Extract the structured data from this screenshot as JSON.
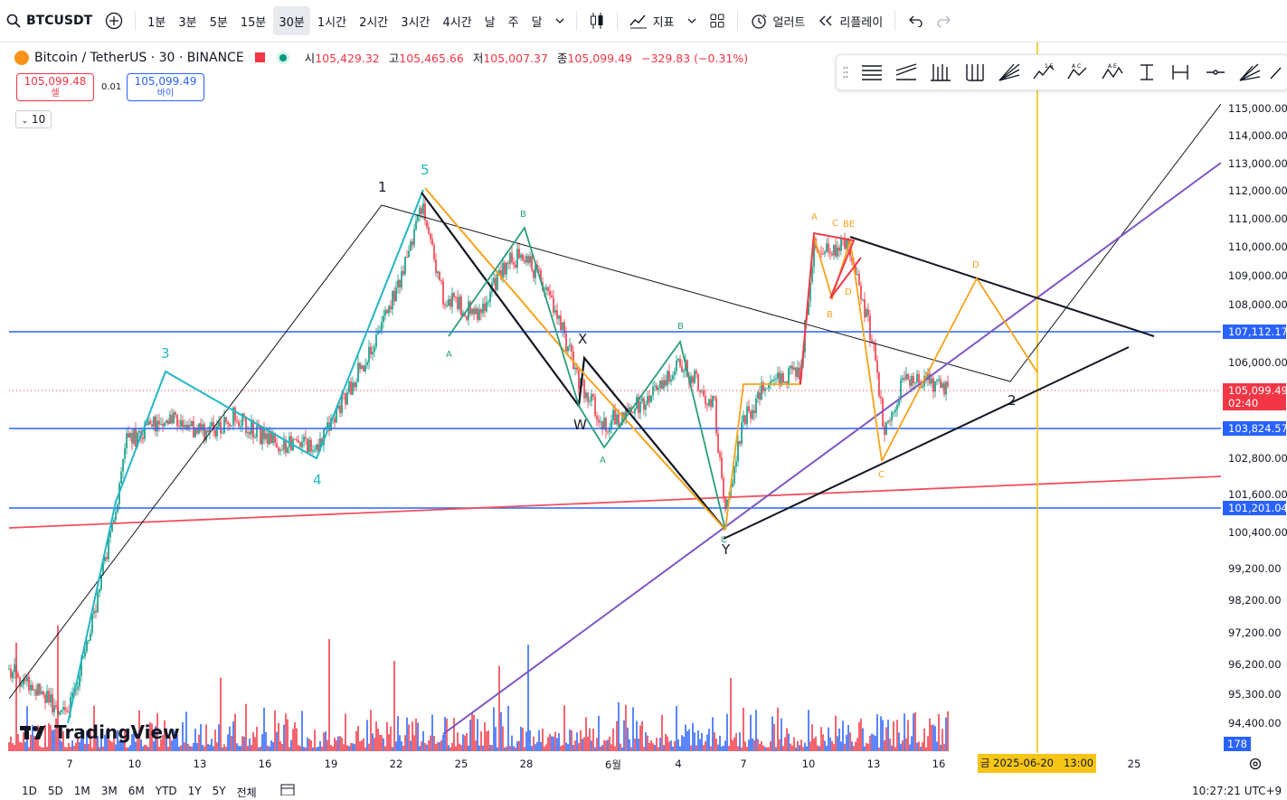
{
  "toolbar": {
    "symbol": "BTCUSDT",
    "intervals": [
      "1분",
      "3분",
      "5분",
      "15분",
      "30분",
      "1시간",
      "2시간",
      "3시간",
      "4시간",
      "날",
      "주",
      "달"
    ],
    "active_interval": "30분",
    "indicators": "지표",
    "alert": "얼러트",
    "replay": "리플레이"
  },
  "legend": {
    "title": "Bitcoin / TetherUS · 30 · BINANCE",
    "o_label": "시",
    "o": "105,429.32",
    "h_label": "고",
    "h": "105,465.66",
    "l_label": "저",
    "l": "105,007.37",
    "c_label": "종",
    "c": "105,099.49",
    "change": "−329.83 (−0.31%)"
  },
  "trade": {
    "sell_price": "105,099.48",
    "sell_label": "셀",
    "spread": "0.01",
    "buy_price": "105,099.49",
    "buy_label": "바이"
  },
  "volume_length": "10",
  "price_scale": {
    "ticks": [
      "115,000.00",
      "114,000.00",
      "113,000.00",
      "112,000.00",
      "111,000.00",
      "110,000.00",
      "109,000.00",
      "108,000.00",
      "106,000.00",
      "102,800.00",
      "101,600.00",
      "100,400.00",
      "99,200.00",
      "98,200.00",
      "97,200.00",
      "96,200.00",
      "95,300.00",
      "94,400.00"
    ],
    "labels": {
      "level1": "107,112.17",
      "current": "105,099.49",
      "countdown": "02:40",
      "level2": "103,824.57",
      "level3": "101,201.04",
      "volume": "178"
    }
  },
  "time_axis": {
    "ticks": [
      "7",
      "10",
      "13",
      "16",
      "19",
      "22",
      "25",
      "28",
      "6월",
      "4",
      "7",
      "10",
      "13",
      "16",
      "25"
    ],
    "cursor": "금 2025-06-20   13:00"
  },
  "wave_labels": {
    "w1": "1",
    "w3": "3",
    "w4": "4",
    "w5": "5",
    "w2": "2",
    "x": "X",
    "w": "W",
    "y": "Y",
    "a1": "A",
    "b1": "B",
    "a2": "A",
    "b2": "B",
    "c1": "C",
    "ha": "A",
    "hb": "B",
    "hc": "C",
    "hbe": "BE",
    "hd": "D",
    "oc": "C",
    "od": "D"
  },
  "bottom": {
    "ranges": [
      "1D",
      "5D",
      "1M",
      "3M",
      "6M",
      "YTD",
      "1Y",
      "5Y",
      "전체"
    ],
    "clock": "10:27:21 UTC+9"
  },
  "brand": "TradingView",
  "colors": {
    "up": "#089981",
    "down": "#f23645",
    "blue_level": "#2962ff",
    "purple": "#7e57c2",
    "orange": "#f7a21b",
    "teal": "#22b6c3",
    "green_wave": "#2a9d7e",
    "red_wave": "#ef3a4a",
    "cursor": "#f5c518"
  }
}
